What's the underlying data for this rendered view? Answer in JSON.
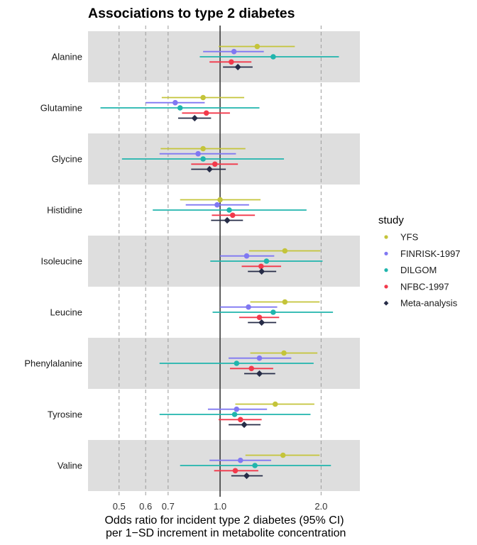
{
  "chart_data": {
    "type": "forest",
    "title": "Associations to type 2 diabetes",
    "xlabel_line1": "Odds ratio for incident type 2 diabetes (95% CI)",
    "xlabel_line2": " per 1−SD increment in metabolite concentration",
    "ylabel": "",
    "x_scale": "log",
    "xlim": [
      0.404,
      2.61
    ],
    "x_ticks": [
      {
        "value": 0.5,
        "label": "0.5"
      },
      {
        "value": 0.6,
        "label": "0.6"
      },
      {
        "value": 0.7,
        "label": "0.7"
      },
      {
        "value": 1.0,
        "label": "1.0"
      },
      {
        "value": 2.0,
        "label": "2.0"
      }
    ],
    "reference_line": 1.0,
    "grid": "dashed vertical at ticks; alternating row shading",
    "legend": {
      "title": "study",
      "placement": "right",
      "entries": [
        {
          "name": "YFS",
          "color": "#c4c43a",
          "shape": "circle"
        },
        {
          "name": "FINRISK-1997",
          "color": "#8078f2",
          "shape": "circle"
        },
        {
          "name": "DILGOM",
          "color": "#20b5ad",
          "shape": "circle"
        },
        {
          "name": "NFBC-1997",
          "color": "#f2394b",
          "shape": "circle"
        },
        {
          "name": "Meta-analysis",
          "color": "#262c47",
          "shape": "diamond"
        }
      ]
    },
    "categories": [
      "Alanine",
      "Glutamine",
      "Glycine",
      "Histidine",
      "Isoleucine",
      "Leucine",
      "Phenylalanine",
      "Tyrosine",
      "Valine"
    ],
    "series": [
      {
        "name": "YFS",
        "estimate": [
          1.29,
          0.89,
          0.89,
          1.0,
          1.56,
          1.56,
          1.55,
          1.46,
          1.54
        ],
        "lower": [
          0.99,
          0.67,
          0.665,
          0.76,
          1.22,
          1.23,
          1.23,
          1.11,
          1.19
        ],
        "upper": [
          1.67,
          1.18,
          1.19,
          1.32,
          1.99,
          1.98,
          1.95,
          1.91,
          1.98
        ]
      },
      {
        "name": "FINRISK-1997",
        "estimate": [
          1.1,
          0.735,
          0.86,
          0.98,
          1.2,
          1.215,
          1.31,
          1.12,
          1.15
        ],
        "lower": [
          0.89,
          0.6,
          0.66,
          0.79,
          1.0,
          1.0,
          1.06,
          0.92,
          0.93
        ],
        "upper": [
          1.35,
          0.9,
          1.115,
          1.22,
          1.45,
          1.48,
          1.63,
          1.38,
          1.42
        ]
      },
      {
        "name": "DILGOM",
        "estimate": [
          1.44,
          0.76,
          0.89,
          1.065,
          1.375,
          1.44,
          1.12,
          1.105,
          1.27
        ],
        "lower": [
          0.87,
          0.44,
          0.51,
          0.63,
          0.935,
          0.95,
          0.66,
          0.66,
          0.76
        ],
        "upper": [
          2.26,
          1.31,
          1.55,
          1.81,
          2.02,
          2.17,
          1.9,
          1.86,
          2.14
        ]
      },
      {
        "name": "NFBC-1997",
        "estimate": [
          1.08,
          0.91,
          0.965,
          1.09,
          1.325,
          1.31,
          1.24,
          1.15,
          1.11
        ],
        "lower": [
          0.93,
          0.77,
          0.82,
          0.945,
          1.16,
          1.14,
          1.07,
          0.99,
          0.96
        ],
        "upper": [
          1.24,
          1.07,
          1.13,
          1.27,
          1.52,
          1.5,
          1.44,
          1.33,
          1.3
        ]
      },
      {
        "name": "Meta-analysis",
        "estimate": [
          1.13,
          0.84,
          0.93,
          1.05,
          1.33,
          1.33,
          1.31,
          1.18,
          1.2
        ],
        "lower": [
          1.02,
          0.75,
          0.82,
          0.94,
          1.21,
          1.21,
          1.18,
          1.06,
          1.08
        ],
        "upper": [
          1.25,
          0.94,
          1.04,
          1.17,
          1.47,
          1.47,
          1.46,
          1.32,
          1.34
        ]
      }
    ]
  }
}
